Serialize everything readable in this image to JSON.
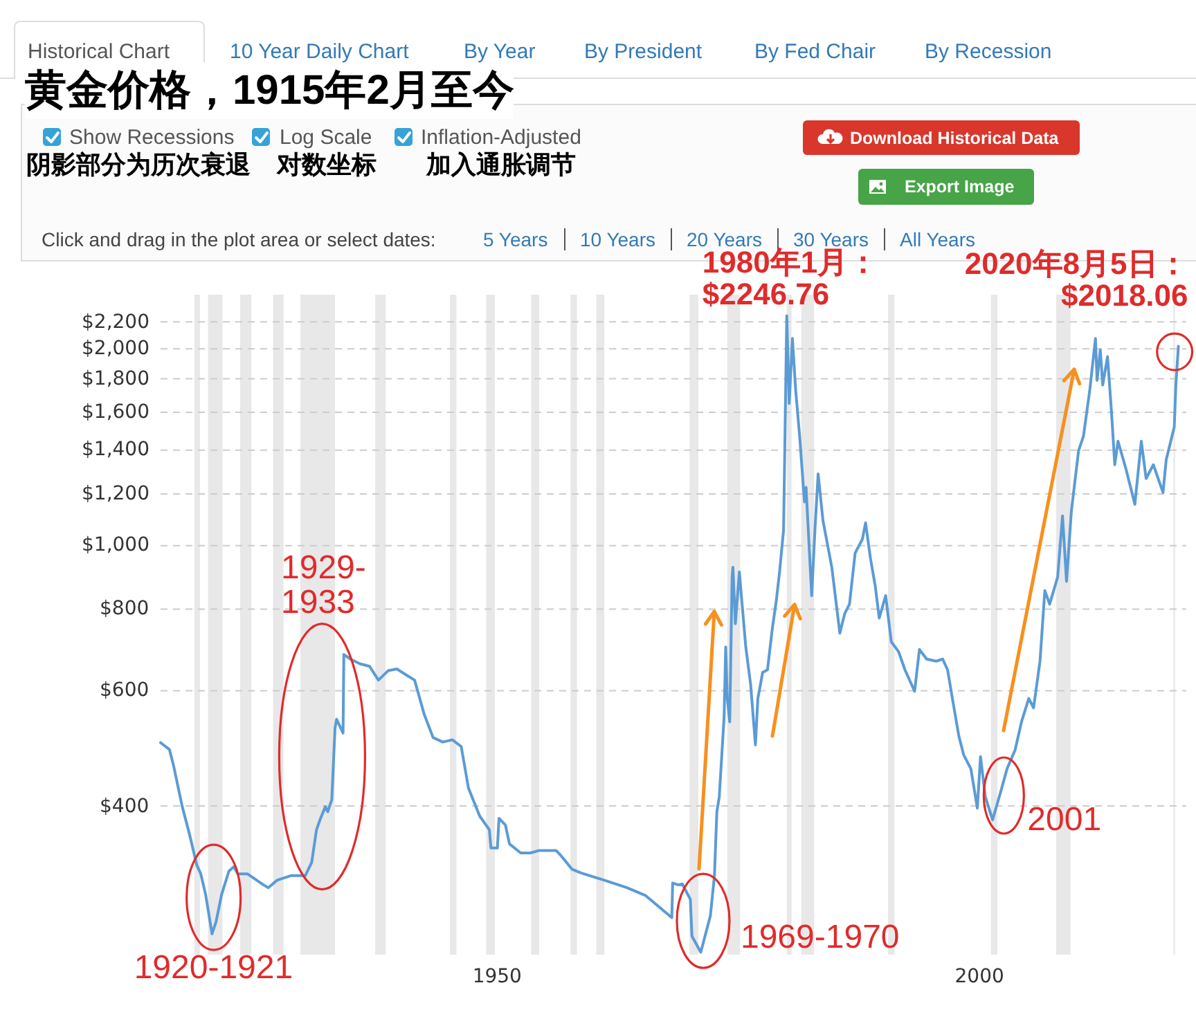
{
  "chart_data": {
    "type": "line",
    "title": "黄金价格，1915年2月至今",
    "x": [
      "1915-02",
      "1916-01",
      "1916-06",
      "1917-05",
      "1918-02",
      "1918-11",
      "1919-04",
      "1919-10",
      "1920-06",
      "1920-11",
      "1921-06",
      "1922-03",
      "1922-09",
      "1923-02",
      "1924-02",
      "1925-10",
      "1926-04",
      "1927-03",
      "1928-08",
      "1930-02",
      "1930-10",
      "1931-04",
      "1931-09",
      "1932-03",
      "1932-06",
      "1932-11",
      "1933-03",
      "1933-05",
      "1934-01",
      "1934-02",
      "1934-10",
      "1935-10",
      "1936-10",
      "1937-09",
      "1938-09",
      "1939-08",
      "1940-08",
      "1941-06",
      "1942-06",
      "1943-05",
      "1944-05",
      "1945-05",
      "1946-04",
      "1947-01",
      "1948-03",
      "1949-03",
      "1949-05",
      "1950-01",
      "1950-03",
      "1950-11",
      "1951-04",
      "1952-06",
      "1953-06",
      "1954-05",
      "1956-02",
      "1956-08",
      "1957-10",
      "1958-09",
      "1961-02",
      "1963-06",
      "1965-05",
      "1968-02",
      "1968-03",
      "1968-10",
      "1969-03",
      "1970-01",
      "1970-03",
      "1971-02",
      "1971-08",
      "1972-02",
      "1972-07",
      "1972-10",
      "1973-01",
      "1973-07",
      "1973-09",
      "1973-11",
      "1974-02",
      "1974-05",
      "1974-06",
      "1974-09",
      "1975-02",
      "1975-05",
      "1975-10",
      "1976-04",
      "1976-10",
      "1977-01",
      "1977-07",
      "1978-01",
      "1978-07",
      "1978-12",
      "1979-04",
      "1979-09",
      "1980-01",
      "1980-04",
      "1980-08",
      "1980-12",
      "1981-05",
      "1981-11",
      "1982-01",
      "1982-08",
      "1982-12",
      "1983-04",
      "1983-10",
      "1984-09",
      "1985-07",
      "1986-01",
      "1986-07",
      "1987-02",
      "1987-11",
      "1988-03",
      "1988-09",
      "1989-03",
      "1989-08",
      "1990-04",
      "1990-11",
      "1991-08",
      "1992-04",
      "1993-04",
      "1993-10",
      "1994-07",
      "1995-07",
      "1996-03",
      "1996-09",
      "1997-05",
      "1997-11",
      "1998-05",
      "1999-02",
      "1999-10",
      "2000-02",
      "2000-08",
      "2001-05",
      "2002-03",
      "2002-11",
      "2003-09",
      "2004-05",
      "2005-02",
      "2005-08",
      "2006-04",
      "2006-10",
      "2007-04",
      "2008-02",
      "2008-08",
      "2009-01",
      "2009-07",
      "2010-04",
      "2010-10",
      "2011-06",
      "2012-01",
      "2012-03",
      "2012-07",
      "2012-10",
      "2013-04",
      "2013-09",
      "2014-01",
      "2014-05",
      "2015-03",
      "2016-02",
      "2016-10",
      "2017-04",
      "2018-01",
      "2019-01",
      "2019-05",
      "2020-03",
      "2020-05",
      "2020-08-05"
    ],
    "values": [
      500,
      488,
      462,
      399,
      362,
      325,
      315,
      293,
      255,
      266,
      293,
      318,
      323,
      315,
      315,
      303,
      300,
      308,
      313,
      313,
      328,
      368,
      383,
      399,
      392,
      409,
      526,
      543,
      517,
      682,
      671,
      660,
      654,
      623,
      644,
      648,
      634,
      623,
      552,
      509,
      501,
      505,
      493,
      426,
      386,
      368,
      345,
      345,
      383,
      374,
      350,
      339,
      339,
      342,
      342,
      336,
      320,
      316,
      308,
      300,
      292,
      270,
      305,
      303,
      304,
      288,
      253,
      239,
      255,
      272,
      313,
      392,
      413,
      547,
      700,
      584,
      538,
      896,
      927,
      760,
      912,
      825,
      700,
      614,
      496,
      584,
      640,
      646,
      747,
      825,
      912,
      1057,
      2246.76,
      1650,
      2075,
      1733,
      1470,
      1167,
      1228,
      839,
      1057,
      1288,
      1093,
      927,
      735,
      787,
      814,
      974,
      1023,
      1084,
      958,
      868,
      775,
      839,
      713,
      689,
      646,
      599,
      694,
      671,
      666,
      671,
      646,
      565,
      512,
      479,
      456,
      397,
      476,
      413,
      381,
      420,
      456,
      487,
      538,
      584,
      565,
      666,
      854,
      814,
      896,
      1111,
      882,
      1129,
      1398,
      1470,
      1733,
      2075,
      1790,
      1993,
      1761,
      1946,
      1596,
      1330,
      1445,
      1309,
      1157,
      1445,
      1267,
      1330,
      1206,
      1354,
      1519,
      1761,
      2018.06
    ],
    "color": "#5b9bd5",
    "xlim": [
      "1915-02",
      "2021-06"
    ],
    "xticks": [
      "1950",
      "2000"
    ],
    "ylim": [
      237,
      2420
    ],
    "yticks": [
      {
        "value": 400,
        "label": "$400"
      },
      {
        "value": 600,
        "label": "$600"
      },
      {
        "value": 800,
        "label": "$800"
      },
      {
        "value": 1000,
        "label": "$1,000"
      },
      {
        "value": 1200,
        "label": "$1,200"
      },
      {
        "value": 1400,
        "label": "$1,400"
      },
      {
        "value": 1600,
        "label": "$1,600"
      },
      {
        "value": 1800,
        "label": "$1,800"
      },
      {
        "value": 2000,
        "label": "$2,000"
      },
      {
        "value": 2200,
        "label": "$2,200"
      }
    ],
    "log": "y",
    "grid": "y",
    "bands": [
      {
        "axis": "x",
        "from": "1918-08",
        "to": "1919-03"
      },
      {
        "axis": "x",
        "from": "1920-01",
        "to": "1921-07"
      },
      {
        "axis": "x",
        "from": "1923-05",
        "to": "1924-07"
      },
      {
        "axis": "x",
        "from": "1926-10",
        "to": "1927-11"
      },
      {
        "axis": "x",
        "from": "1929-08",
        "to": "1933-03"
      },
      {
        "axis": "x",
        "from": "1937-05",
        "to": "1938-06"
      },
      {
        "axis": "x",
        "from": "1945-02",
        "to": "1945-10"
      },
      {
        "axis": "x",
        "from": "1948-11",
        "to": "1949-10"
      },
      {
        "axis": "x",
        "from": "1953-07",
        "to": "1954-05"
      },
      {
        "axis": "x",
        "from": "1957-08",
        "to": "1958-04"
      },
      {
        "axis": "x",
        "from": "1960-04",
        "to": "1961-02"
      },
      {
        "axis": "x",
        "from": "1969-12",
        "to": "1970-11"
      },
      {
        "axis": "x",
        "from": "1973-11",
        "to": "1975-03"
      },
      {
        "axis": "x",
        "from": "1980-01",
        "to": "1980-07"
      },
      {
        "axis": "x",
        "from": "1981-07",
        "to": "1982-11"
      },
      {
        "axis": "x",
        "from": "1990-07",
        "to": "1991-03"
      },
      {
        "axis": "x",
        "from": "2001-03",
        "to": "2001-11"
      },
      {
        "axis": "x",
        "from": "2007-12",
        "to": "2009-06"
      },
      {
        "axis": "x",
        "from": "2020-02",
        "to": "2020-04"
      }
    ],
    "annotations": [
      "Historical Chart",
      "10 Year Daily Chart",
      "By Year",
      "By President",
      "By Fed Chair",
      "By Recession",
      "Show Recessions",
      "Log Scale",
      "Inflation-Adjusted",
      "阴影部分为历次衰退",
      "对数坐标",
      "加入通胀调节",
      "Download Historical Data",
      "Export Image",
      "Click and drag in the plot area or select dates:",
      "5 Years",
      "10 Years",
      "20 Years",
      "30 Years",
      "All Years",
      {
        "text": "1920-1921",
        "x": "1920-08",
        "y": 290
      },
      "1929-1933",
      {
        "text": "1980年1月：$2246.76",
        "x": "1980-01",
        "y": 2246.76
      },
      {
        "text": "1969-1970",
        "x": "1971-05",
        "y": 267
      },
      {
        "text": "2001",
        "x": "2002-07",
        "y": 415
      },
      {
        "text": "2020年8月5日：$2018.06",
        "x": "2020-08-05",
        "y": 2018.06
      }
    ]
  }
}
